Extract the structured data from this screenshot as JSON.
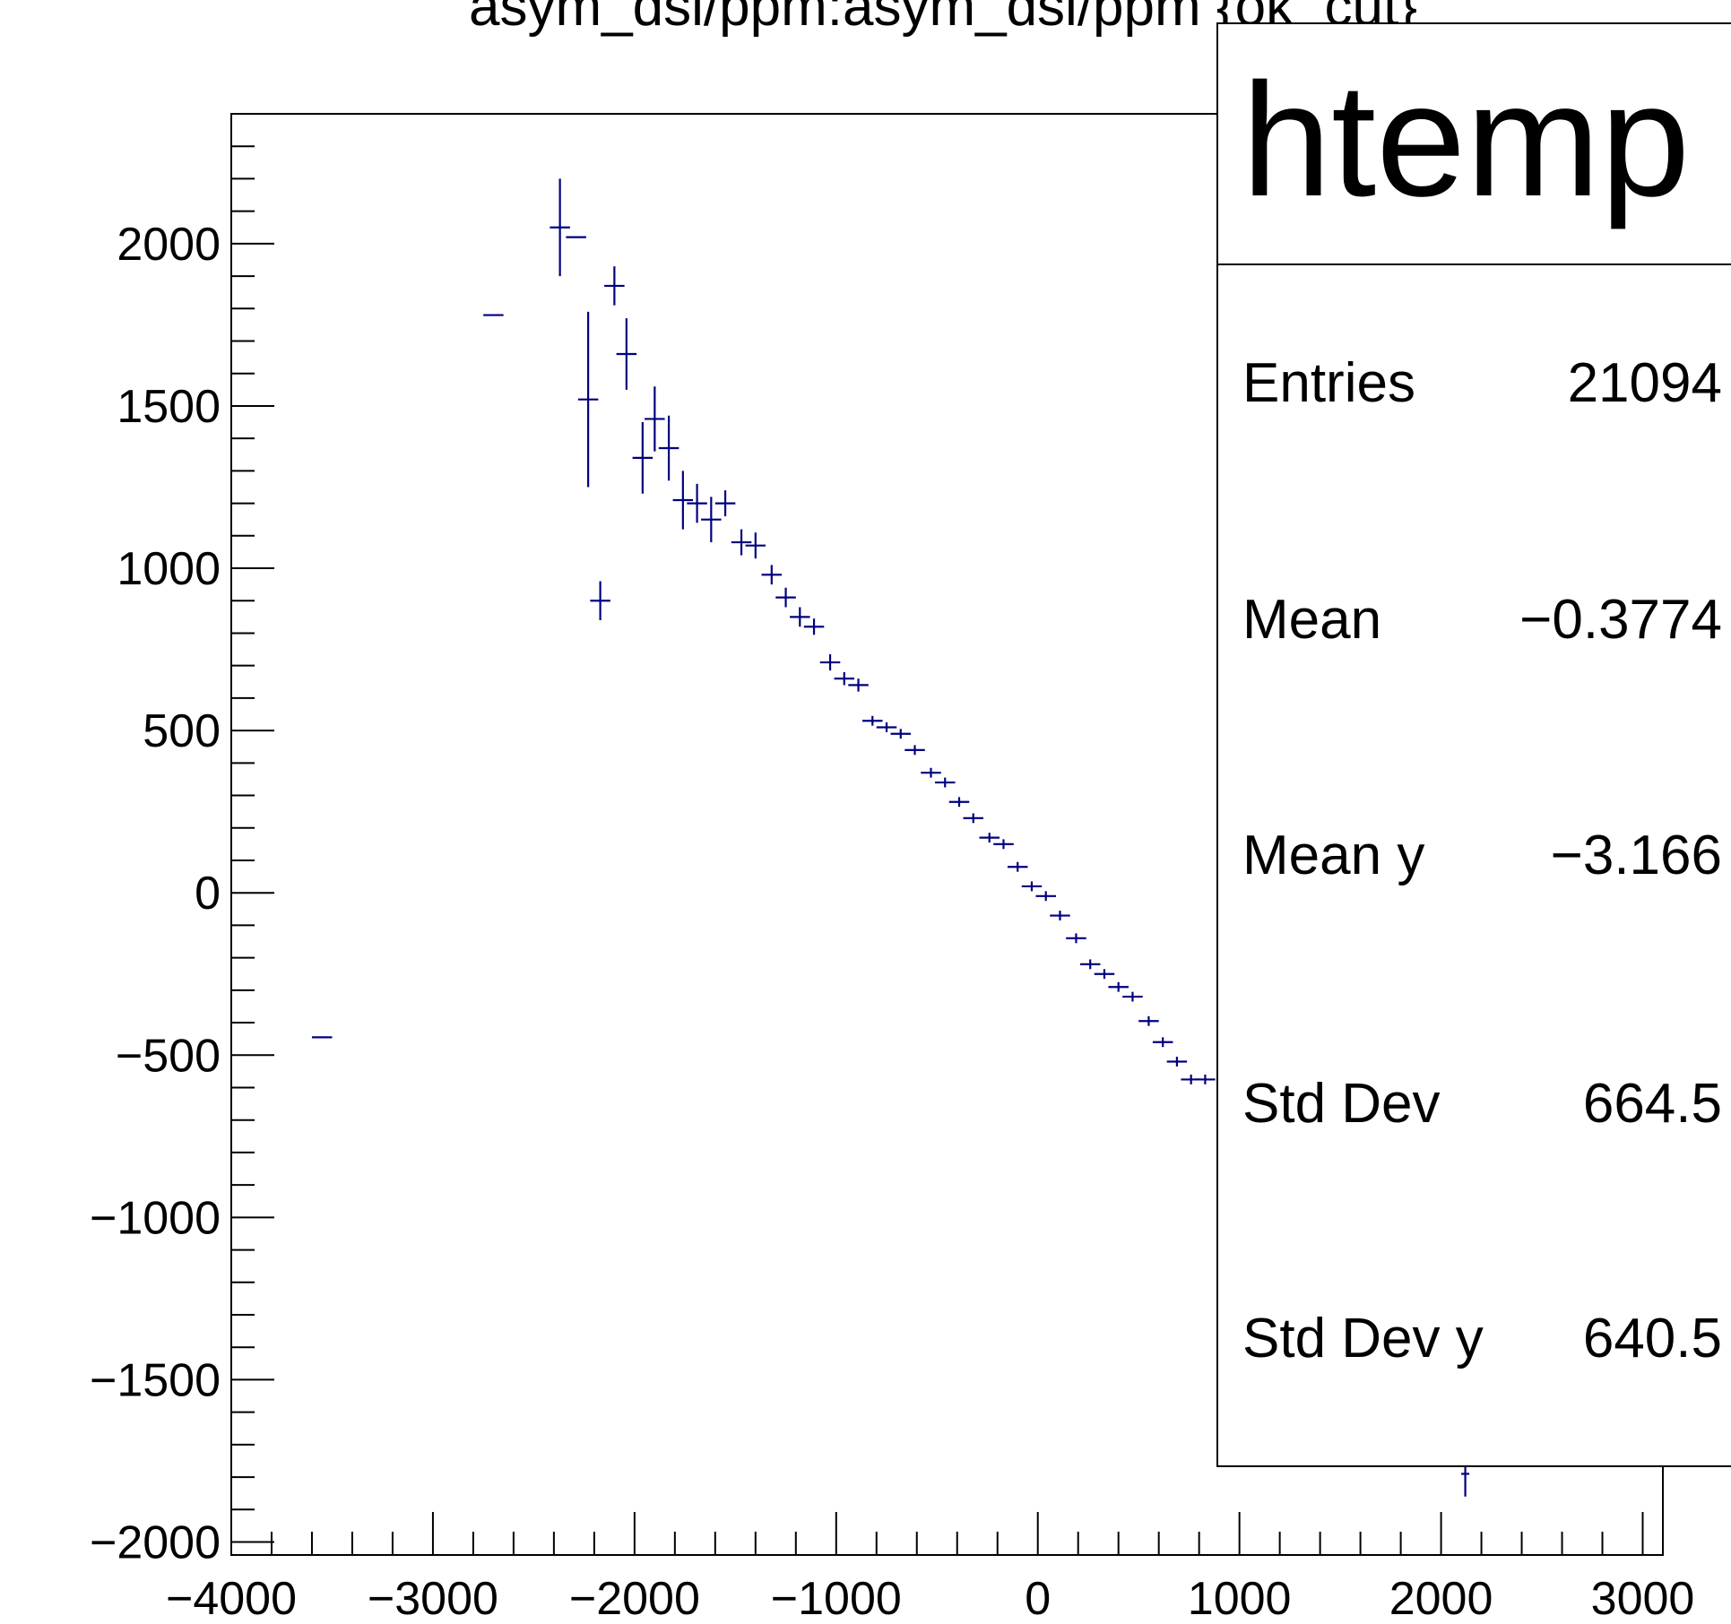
{
  "chart_data": {
    "type": "scatter",
    "title": "asym_dsl/ppm:asym_dsl/ppm {ok_cut}",
    "xlabel": "",
    "ylabel": "",
    "xlim": [
      -4000,
      3100
    ],
    "ylim": [
      -2040,
      2400
    ],
    "grid": false,
    "legend_position": "top-right",
    "x_ticks": [
      -4000,
      -3000,
      -2000,
      -1000,
      0,
      1000,
      2000,
      3000
    ],
    "y_ticks": [
      -2000,
      -1500,
      -1000,
      -500,
      0,
      500,
      1000,
      1500,
      2000
    ],
    "x_tick_labels": [
      "−4000",
      "−3000",
      "−2000",
      "−1000",
      "0",
      "1000",
      "2000",
      "3000"
    ],
    "y_tick_labels": [
      "−2000",
      "−1500",
      "−1000",
      "−500",
      "0",
      "500",
      "1000",
      "1500",
      "2000"
    ],
    "marker_color": "#00007f",
    "series": [
      {
        "points": [
          {
            "x": -3550,
            "y": -445,
            "ex": 50,
            "ey": 0
          },
          {
            "x": -2700,
            "y": 1780,
            "ex": 50,
            "ey": 0
          },
          {
            "x": -2370,
            "y": 2050,
            "ex": 50,
            "ey": 150
          },
          {
            "x": -2290,
            "y": 2020,
            "ex": 50,
            "ey": 0
          },
          {
            "x": -2230,
            "y": 1520,
            "ex": 50,
            "ey": 270
          },
          {
            "x": -2170,
            "y": 900,
            "ex": 50,
            "ey": 60
          },
          {
            "x": -2100,
            "y": 1870,
            "ex": 50,
            "ey": 60
          },
          {
            "x": -2040,
            "y": 1660,
            "ex": 50,
            "ey": 110
          },
          {
            "x": -1960,
            "y": 1340,
            "ex": 50,
            "ey": 110
          },
          {
            "x": -1900,
            "y": 1460,
            "ex": 50,
            "ey": 100
          },
          {
            "x": -1830,
            "y": 1370,
            "ex": 50,
            "ey": 100
          },
          {
            "x": -1760,
            "y": 1210,
            "ex": 50,
            "ey": 90
          },
          {
            "x": -1690,
            "y": 1200,
            "ex": 50,
            "ey": 60
          },
          {
            "x": -1620,
            "y": 1150,
            "ex": 50,
            "ey": 70
          },
          {
            "x": -1550,
            "y": 1200,
            "ex": 50,
            "ey": 40
          },
          {
            "x": -1470,
            "y": 1080,
            "ex": 50,
            "ey": 40
          },
          {
            "x": -1400,
            "y": 1070,
            "ex": 50,
            "ey": 40
          },
          {
            "x": -1320,
            "y": 980,
            "ex": 50,
            "ey": 30
          },
          {
            "x": -1250,
            "y": 910,
            "ex": 50,
            "ey": 30
          },
          {
            "x": -1180,
            "y": 850,
            "ex": 50,
            "ey": 30
          },
          {
            "x": -1110,
            "y": 820,
            "ex": 50,
            "ey": 25
          },
          {
            "x": -1030,
            "y": 710,
            "ex": 50,
            "ey": 25
          },
          {
            "x": -960,
            "y": 660,
            "ex": 50,
            "ey": 20
          },
          {
            "x": -890,
            "y": 640,
            "ex": 50,
            "ey": 20
          },
          {
            "x": -820,
            "y": 530,
            "ex": 50,
            "ey": 15
          },
          {
            "x": -750,
            "y": 510,
            "ex": 50,
            "ey": 15
          },
          {
            "x": -680,
            "y": 490,
            "ex": 50,
            "ey": 15
          },
          {
            "x": -610,
            "y": 440,
            "ex": 50,
            "ey": 15
          },
          {
            "x": -530,
            "y": 370,
            "ex": 50,
            "ey": 15
          },
          {
            "x": -460,
            "y": 340,
            "ex": 50,
            "ey": 15
          },
          {
            "x": -390,
            "y": 280,
            "ex": 50,
            "ey": 15
          },
          {
            "x": -320,
            "y": 230,
            "ex": 50,
            "ey": 15
          },
          {
            "x": -240,
            "y": 170,
            "ex": 50,
            "ey": 15
          },
          {
            "x": -170,
            "y": 150,
            "ex": 50,
            "ey": 15
          },
          {
            "x": -100,
            "y": 80,
            "ex": 50,
            "ey": 15
          },
          {
            "x": -30,
            "y": 20,
            "ex": 50,
            "ey": 15
          },
          {
            "x": 40,
            "y": -10,
            "ex": 50,
            "ey": 15
          },
          {
            "x": 110,
            "y": -70,
            "ex": 50,
            "ey": 15
          },
          {
            "x": 190,
            "y": -140,
            "ex": 50,
            "ey": 15
          },
          {
            "x": 260,
            "y": -220,
            "ex": 50,
            "ey": 15
          },
          {
            "x": 330,
            "y": -250,
            "ex": 50,
            "ey": 15
          },
          {
            "x": 400,
            "y": -290,
            "ex": 50,
            "ey": 15
          },
          {
            "x": 470,
            "y": -320,
            "ex": 50,
            "ey": 15
          },
          {
            "x": 550,
            "y": -395,
            "ex": 50,
            "ey": 15
          },
          {
            "x": 620,
            "y": -460,
            "ex": 50,
            "ey": 15
          },
          {
            "x": 690,
            "y": -520,
            "ex": 50,
            "ey": 15
          },
          {
            "x": 760,
            "y": -575,
            "ex": 50,
            "ey": 15
          },
          {
            "x": 830,
            "y": -575,
            "ex": 50,
            "ey": 15
          },
          {
            "x": 2120,
            "y": -1790,
            "ex": 20,
            "ey": 70
          }
        ]
      }
    ]
  },
  "stats_box": {
    "title": "htemp",
    "rows": [
      {
        "label": "Entries",
        "value": "21094"
      },
      {
        "label": "Mean",
        "value": "−0.3774"
      },
      {
        "label": "Mean y",
        "value": "−3.166"
      },
      {
        "label": "Std Dev",
        "value": "664.5"
      },
      {
        "label": "Std Dev y",
        "value": "640.5"
      }
    ]
  }
}
